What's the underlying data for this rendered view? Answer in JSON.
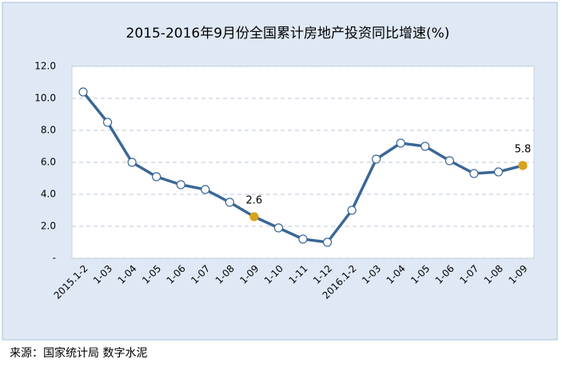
{
  "chart_data": {
    "type": "line",
    "title": "2015-2016年9月份全国累计房地产投资同比增速(%)",
    "categories": [
      "2015.1-2",
      "1-03",
      "1-04",
      "1-05",
      "1-06",
      "1-07",
      "1-08",
      "1-09",
      "1-10",
      "1-11",
      "1-12",
      "2016.1-2",
      "1-03",
      "1-04",
      "1-05",
      "1-06",
      "1-07",
      "1-08",
      "1-09"
    ],
    "values": [
      10.4,
      8.5,
      6.0,
      5.1,
      4.6,
      4.3,
      3.5,
      2.6,
      1.9,
      1.2,
      1.0,
      3.0,
      6.2,
      7.2,
      7.0,
      6.1,
      5.3,
      5.4,
      5.8
    ],
    "color": "#3a6796",
    "highlighted": [
      7,
      18
    ],
    "highlight_color": "#d9a21b",
    "ylim": [
      0,
      12
    ],
    "yticks": [
      {
        "value": 0,
        "label": "-"
      },
      {
        "value": 2,
        "label": "2.0"
      },
      {
        "value": 4,
        "label": "4.0"
      },
      {
        "value": 6,
        "label": "6.0"
      },
      {
        "value": 8,
        "label": "8.0"
      },
      {
        "value": 10,
        "label": "10.0"
      },
      {
        "value": 12,
        "label": "12.0"
      }
    ],
    "grid": true,
    "source": "来源：国家统计局 数字水泥"
  }
}
